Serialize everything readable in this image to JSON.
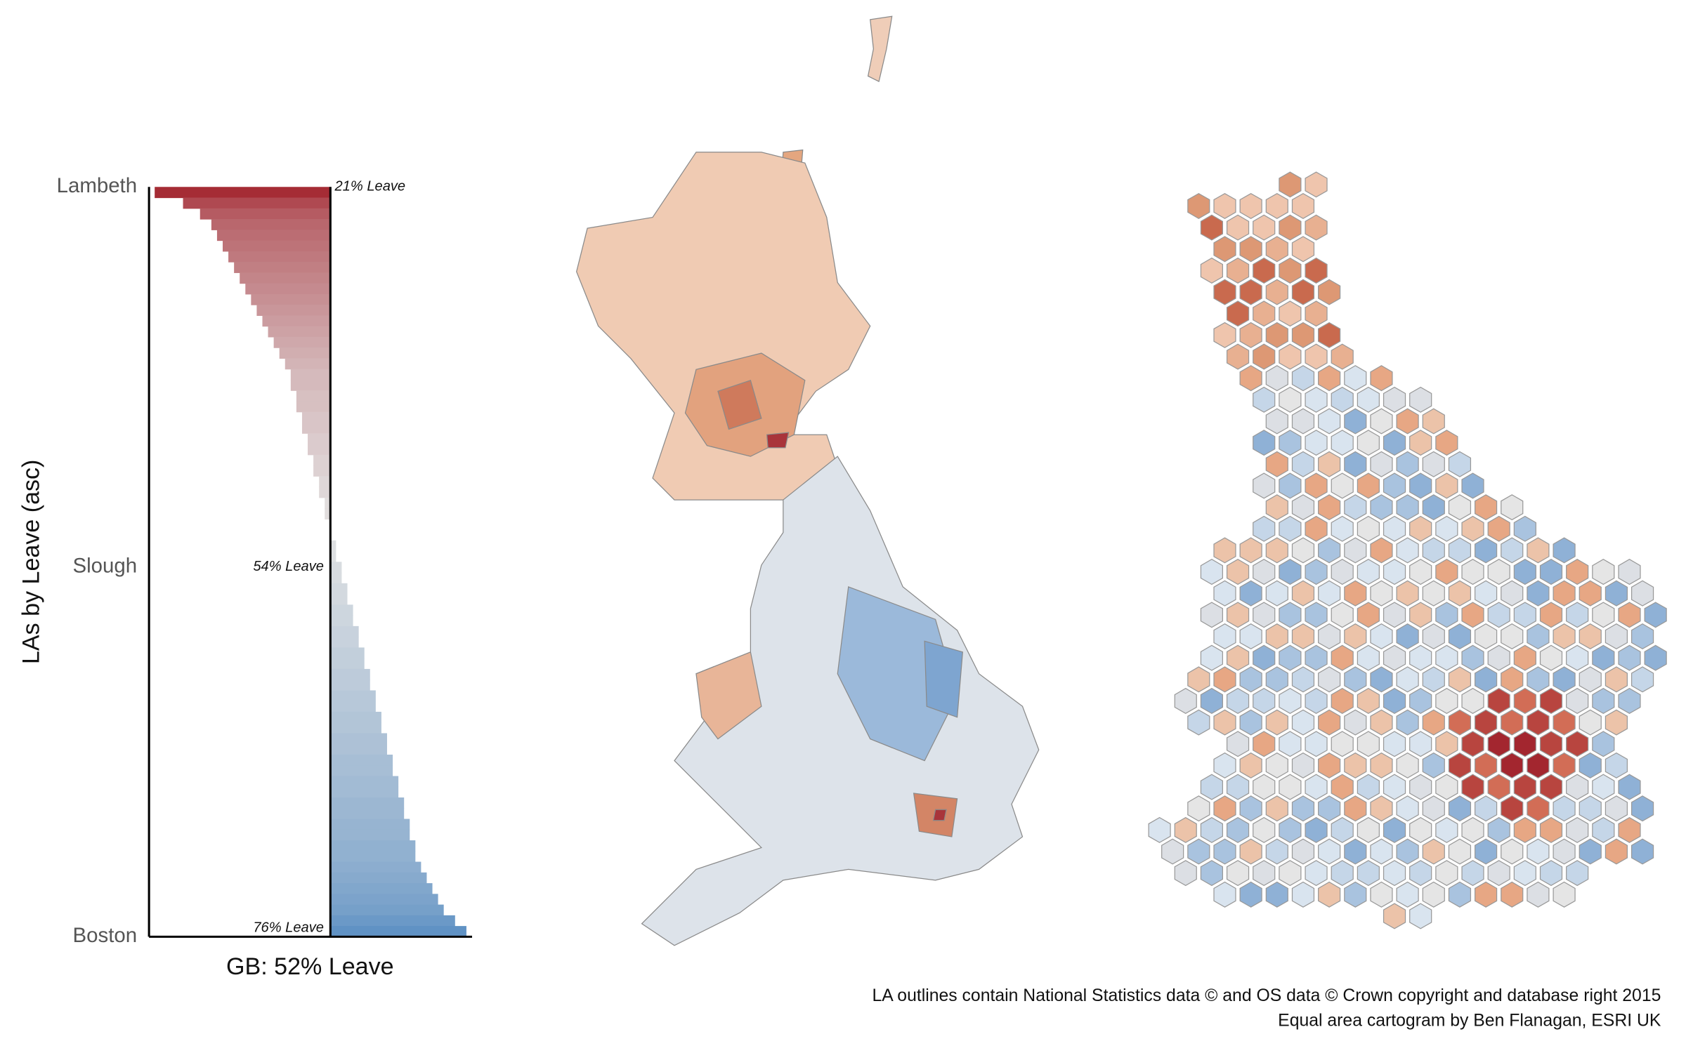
{
  "chart_data": {
    "type": "diverging-bar",
    "y_label": "LAs by Leave (asc)",
    "x_label": "GB: 52% Leave",
    "baseline": 52,
    "xlim": [
      20,
      77
    ],
    "colors": {
      "low": "#a3262f",
      "mid": "#e3e3e3",
      "high": "#5b8fc3"
    },
    "categories": [
      "Lambeth",
      null,
      null,
      null,
      null,
      null,
      null,
      null,
      null,
      null,
      null,
      null,
      null,
      null,
      null,
      null,
      null,
      null,
      null,
      null,
      null,
      null,
      null,
      null,
      null,
      null,
      null,
      null,
      null,
      null,
      null,
      null,
      null,
      null,
      null,
      "Slough",
      null,
      null,
      null,
      null,
      null,
      null,
      null,
      null,
      null,
      null,
      null,
      null,
      null,
      null,
      null,
      null,
      null,
      null,
      null,
      null,
      null,
      null,
      null,
      null,
      null,
      null,
      null,
      null,
      null,
      null,
      null,
      null,
      null,
      "Boston"
    ],
    "values": [
      21,
      26,
      29,
      31,
      32,
      33,
      34,
      35,
      36,
      37,
      38,
      39,
      40,
      41,
      42,
      43,
      44,
      45,
      45,
      46,
      46,
      47,
      47,
      48,
      48,
      49,
      49,
      50,
      50,
      51,
      51,
      52,
      52,
      53,
      53,
      54,
      54,
      55,
      55,
      56,
      56,
      57,
      57,
      58,
      58,
      59,
      59,
      60,
      60,
      61,
      61,
      62,
      62,
      63,
      63,
      64,
      64,
      65,
      65,
      66,
      66,
      67,
      67,
      68,
      69,
      70,
      71,
      72,
      74,
      76
    ],
    "value_labels": [
      "21% Leave",
      null,
      null,
      null,
      null,
      null,
      null,
      null,
      null,
      null,
      null,
      null,
      null,
      null,
      null,
      null,
      null,
      null,
      null,
      null,
      null,
      null,
      null,
      null,
      null,
      null,
      null,
      null,
      null,
      null,
      null,
      null,
      null,
      null,
      null,
      "54% Leave",
      null,
      null,
      null,
      null,
      null,
      null,
      null,
      null,
      null,
      null,
      null,
      null,
      null,
      null,
      null,
      null,
      null,
      null,
      null,
      null,
      null,
      null,
      null,
      null,
      null,
      null,
      null,
      null,
      null,
      null,
      null,
      null,
      null,
      "76% Leave"
    ]
  },
  "credits": [
    "LA outlines contain National Statistics data © and OS data © Crown copyright and database right 2015",
    "Equal area cartogram by Ben Flanagan, ESRI UK"
  ]
}
